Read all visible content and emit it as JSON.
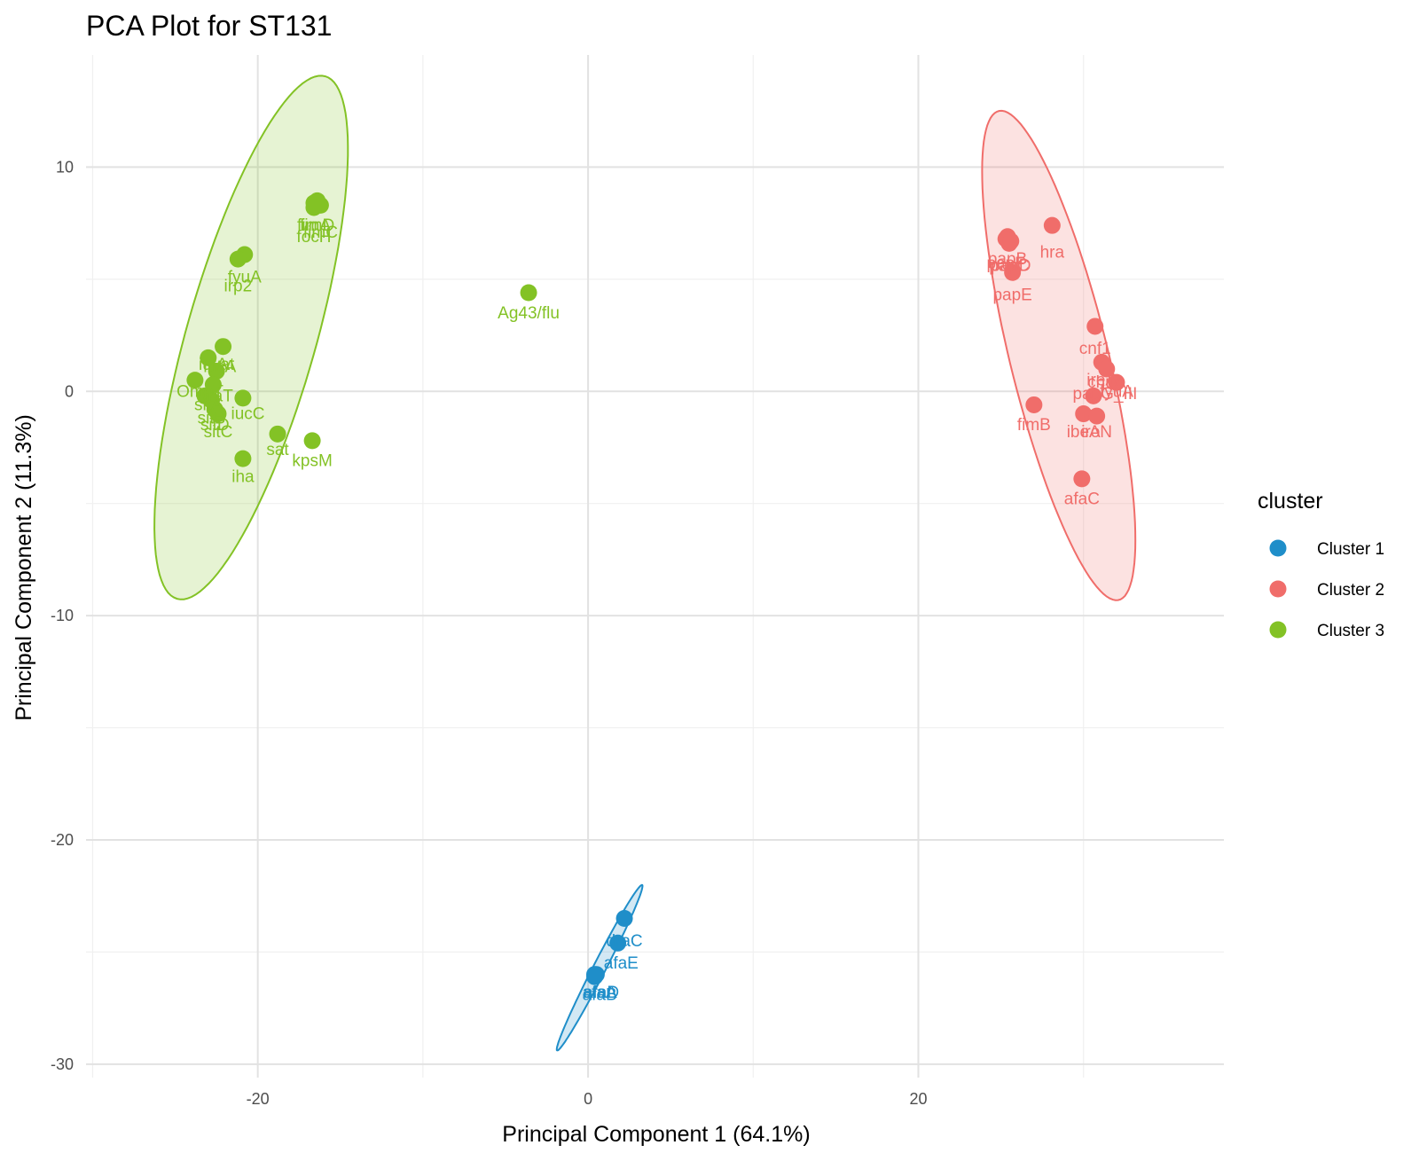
{
  "chart_data": {
    "type": "scatter",
    "title": "PCA Plot for ST131",
    "xlabel": "Principal Component 1 (64.1%)",
    "ylabel": "Principal Component 2 (11.3%)",
    "xlim": [
      -30.4,
      38.5
    ],
    "ylim": [
      -30.6,
      15.0
    ],
    "x_ticks": [
      -20,
      0,
      20
    ],
    "y_ticks": [
      -30,
      -20,
      -10,
      0,
      10
    ],
    "x_tick_labels": [
      "-20",
      "0",
      "20"
    ],
    "y_tick_labels": [
      "-30",
      "-20",
      "-10",
      "0",
      "10"
    ],
    "grid": true,
    "legend": {
      "title": "cluster",
      "position": "right"
    },
    "series": [
      {
        "name": "Cluster 1",
        "color": "#1f8ec9",
        "ellipse": {
          "cx": 0.7,
          "cy": -25.7,
          "rx": 4.5,
          "ry": 0.35,
          "angle_deg": 55
        },
        "points": [
          {
            "x": 2.2,
            "y": -23.5,
            "label": "draC",
            "dx": 0,
            "dy": -1.0
          },
          {
            "x": 1.8,
            "y": -24.6,
            "label": "afaE",
            "dx": 0.2,
            "dy": -0.9
          },
          {
            "x": 0.4,
            "y": -26.0,
            "label": "afaA",
            "dx": 0.3,
            "dy": -0.8
          },
          {
            "x": 0.4,
            "y": -26.1,
            "label": "afaB",
            "dx": 0.3,
            "dy": -0.8
          },
          {
            "x": 0.5,
            "y": -26.0,
            "label": "afaD",
            "dx": 0.3,
            "dy": -0.8
          }
        ]
      },
      {
        "name": "Cluster 2",
        "color": "#f06d6a",
        "ellipse": {
          "cx": 28.5,
          "cy": 1.6,
          "rx": 11.5,
          "ry": 2.9,
          "angle_deg": -71
        },
        "points": [
          {
            "x": 28.1,
            "y": 7.4,
            "label": "hra",
            "dx": 0,
            "dy": -1.2
          },
          {
            "x": 25.4,
            "y": 6.9,
            "label": "papB",
            "dx": 0,
            "dy": -1.0
          },
          {
            "x": 25.5,
            "y": 6.6,
            "label": "papC",
            "dx": 0,
            "dy": -1.0
          },
          {
            "x": 25.3,
            "y": 6.8,
            "label": "papF",
            "dx": 0,
            "dy": -1.1
          },
          {
            "x": 25.6,
            "y": 6.7,
            "label": "papD",
            "dx": 0,
            "dy": -1.1
          },
          {
            "x": 25.7,
            "y": 5.3,
            "label": "papE",
            "dx": 0,
            "dy": -1.0
          },
          {
            "x": 30.7,
            "y": 2.9,
            "label": "cnf1",
            "dx": 0,
            "dy": -1.0
          },
          {
            "x": 31.1,
            "y": 1.3,
            "label": "ireA",
            "dx": 0,
            "dy": -0.8
          },
          {
            "x": 31.4,
            "y": 1.0,
            "label": "chuA",
            "dx": 0,
            "dy": -0.6
          },
          {
            "x": 32.0,
            "y": 0.4,
            "label": "fyuA",
            "dx": 0,
            "dy": -0.4
          },
          {
            "x": 30.6,
            "y": -0.2,
            "label": "papG_III",
            "dx": 0.7,
            "dy": 0.1
          },
          {
            "x": 27.0,
            "y": -0.6,
            "label": "fimB",
            "dx": 0,
            "dy": -0.9
          },
          {
            "x": 30.0,
            "y": -1.0,
            "label": "ibeA",
            "dx": 0,
            "dy": -0.8
          },
          {
            "x": 30.8,
            "y": -1.1,
            "label": "iroN",
            "dx": 0,
            "dy": -0.7
          },
          {
            "x": 29.9,
            "y": -3.9,
            "label": "afaC",
            "dx": 0,
            "dy": -0.9
          }
        ]
      },
      {
        "name": "Cluster 3",
        "color": "#83c225",
        "ellipse": {
          "cx": -20.4,
          "cy": 2.4,
          "rx": 12.5,
          "ry": 3.8,
          "angle_deg": 68
        },
        "points": [
          {
            "x": -16.6,
            "y": 8.4,
            "label": "fimA",
            "dx": 0,
            "dy": -1.0
          },
          {
            "x": -16.2,
            "y": 8.3,
            "label": "fimC",
            "dx": 0,
            "dy": -1.2
          },
          {
            "x": -16.4,
            "y": 8.5,
            "label": "fimD",
            "dx": 0,
            "dy": -1.1
          },
          {
            "x": -16.6,
            "y": 8.2,
            "label": "focH",
            "dx": 0,
            "dy": -1.3
          },
          {
            "x": -20.8,
            "y": 6.1,
            "label": "fyuA",
            "dx": 0,
            "dy": -1.0
          },
          {
            "x": -21.2,
            "y": 5.9,
            "label": "irp2",
            "dx": 0,
            "dy": -1.2
          },
          {
            "x": -3.6,
            "y": 4.4,
            "label": "Ag43/flu",
            "dx": 0,
            "dy": -0.9
          },
          {
            "x": -22.1,
            "y": 2.0,
            "label": "vat",
            "dx": 0,
            "dy": -0.8
          },
          {
            "x": -23.0,
            "y": 1.5,
            "label": "iutA",
            "dx": 0.3,
            "dy": -0.3
          },
          {
            "x": -22.5,
            "y": 0.9,
            "label": "iucA",
            "dx": 0.2,
            "dy": 0.2
          },
          {
            "x": -23.8,
            "y": 0.5,
            "label": "OmpT",
            "dx": 0.3,
            "dy": -0.5
          },
          {
            "x": -22.7,
            "y": 0.3,
            "label": "traT",
            "dx": 0.3,
            "dy": -0.5
          },
          {
            "x": -23.2,
            "y": -0.2,
            "label": "sitA",
            "dx": 0.2,
            "dy": -0.4
          },
          {
            "x": -22.8,
            "y": -0.4,
            "label": "sitB",
            "dx": 0,
            "dy": -0.8
          },
          {
            "x": -20.9,
            "y": -0.3,
            "label": "iucC",
            "dx": 0.3,
            "dy": -0.7
          },
          {
            "x": -22.6,
            "y": -0.8,
            "label": "sitD",
            "dx": 0,
            "dy": -0.7
          },
          {
            "x": -22.4,
            "y": -1.0,
            "label": "sitC",
            "dx": 0,
            "dy": -0.8
          },
          {
            "x": -18.8,
            "y": -1.9,
            "label": "sat",
            "dx": 0,
            "dy": -0.7
          },
          {
            "x": -16.7,
            "y": -2.2,
            "label": "kpsM",
            "dx": 0,
            "dy": -0.9
          },
          {
            "x": -20.9,
            "y": -3.0,
            "label": "iha",
            "dx": 0,
            "dy": -0.8
          }
        ]
      }
    ]
  }
}
